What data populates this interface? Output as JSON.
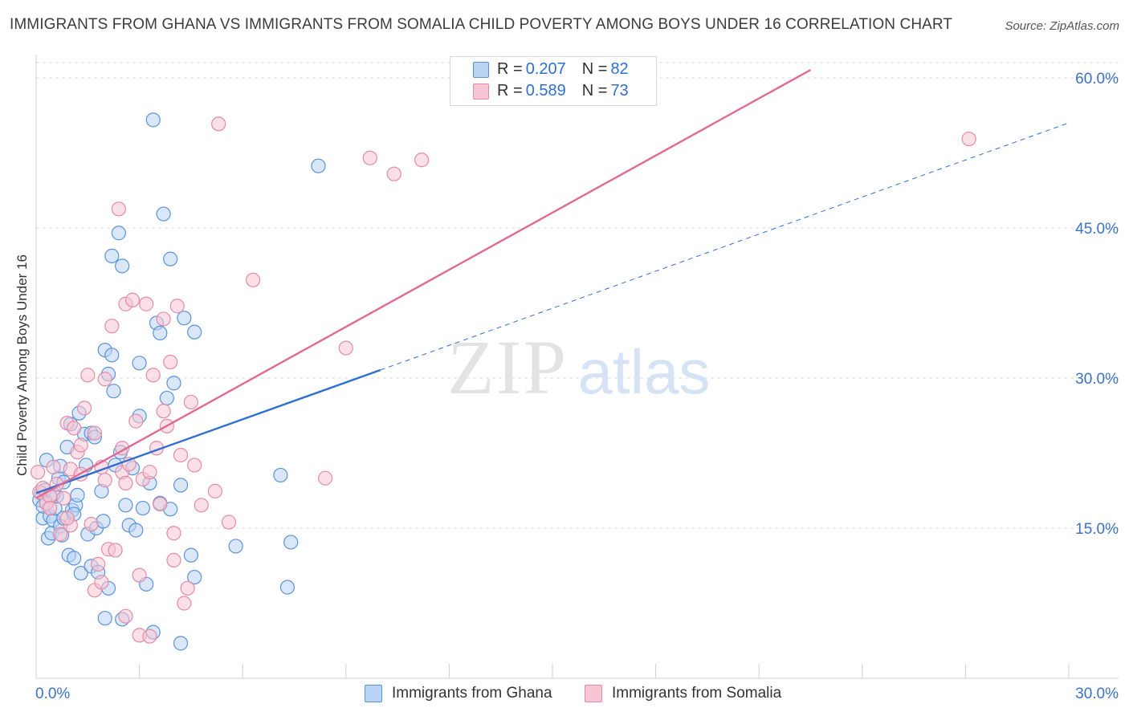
{
  "title": "IMMIGRANTS FROM GHANA VS IMMIGRANTS FROM SOMALIA CHILD POVERTY AMONG BOYS UNDER 16 CORRELATION CHART",
  "source": "Source: ZipAtlas.com",
  "watermark": {
    "zip": "ZIP",
    "atlas": "atlas"
  },
  "legend": {
    "ghana": {
      "r_label": "R = ",
      "r_value": "0.207",
      "n_label": "N = ",
      "n_value": "82"
    },
    "somalia": {
      "r_label": "R = ",
      "r_value": "0.589",
      "n_label": "N = ",
      "n_value": "73"
    }
  },
  "colors": {
    "ghana_fill": "#b9d3f3",
    "ghana_stroke": "#5b93d8",
    "ghana_line": "#2f6fcf",
    "somalia_fill": "#f7c6d4",
    "somalia_stroke": "#e58aa6",
    "somalia_line": "#e06a93",
    "tick": "#3b72c4",
    "grid": "#dcdcdc"
  },
  "chart_data": {
    "type": "scatter",
    "xlabel": "",
    "ylabel": "Child Poverty Among Boys Under 16",
    "xlim": [
      0,
      30
    ],
    "ylim": [
      0,
      60
    ],
    "x_tick_labels": [
      "0.0%",
      "30.0%"
    ],
    "y_ticks": [
      15,
      30,
      45,
      60
    ],
    "y_tick_labels": [
      "15.0%",
      "30.0%",
      "45.0%",
      "60.0%"
    ],
    "grid": true,
    "legend_position": "top-center",
    "series": [
      {
        "name": "Immigrants from Ghana",
        "points": [
          [
            0.1,
            17.8
          ],
          [
            0.15,
            18.5
          ],
          [
            0.2,
            16.0
          ],
          [
            0.2,
            17.2
          ],
          [
            0.25,
            18.8
          ],
          [
            0.3,
            21.8
          ],
          [
            0.35,
            14.0
          ],
          [
            0.4,
            16.2
          ],
          [
            0.45,
            14.5
          ],
          [
            0.5,
            15.8
          ],
          [
            0.55,
            17.0
          ],
          [
            0.6,
            18.2
          ],
          [
            0.65,
            20.0
          ],
          [
            0.7,
            21.2
          ],
          [
            0.7,
            15.2
          ],
          [
            0.75,
            14.3
          ],
          [
            0.8,
            16.0
          ],
          [
            0.9,
            23.1
          ],
          [
            0.95,
            12.3
          ],
          [
            1.0,
            25.4
          ],
          [
            1.05,
            16.8
          ],
          [
            1.1,
            12.0
          ],
          [
            1.15,
            17.3
          ],
          [
            1.2,
            18.3
          ],
          [
            1.25,
            26.5
          ],
          [
            1.3,
            10.5
          ],
          [
            1.4,
            24.4
          ],
          [
            1.45,
            21.3
          ],
          [
            1.5,
            14.4
          ],
          [
            1.6,
            24.5
          ],
          [
            1.6,
            11.2
          ],
          [
            1.7,
            24.1
          ],
          [
            1.75,
            15.0
          ],
          [
            1.8,
            10.6
          ],
          [
            1.9,
            18.7
          ],
          [
            1.95,
            15.7
          ],
          [
            2.0,
            32.8
          ],
          [
            2.1,
            9.0
          ],
          [
            2.1,
            30.4
          ],
          [
            2.2,
            32.3
          ],
          [
            2.2,
            42.2
          ],
          [
            2.25,
            28.7
          ],
          [
            2.3,
            21.3
          ],
          [
            2.4,
            44.5
          ],
          [
            2.45,
            22.6
          ],
          [
            2.5,
            41.2
          ],
          [
            2.6,
            17.3
          ],
          [
            2.7,
            15.3
          ],
          [
            2.8,
            21.0
          ],
          [
            2.9,
            14.8
          ],
          [
            3.0,
            31.5
          ],
          [
            3.0,
            26.2
          ],
          [
            3.1,
            17.0
          ],
          [
            3.2,
            9.4
          ],
          [
            3.3,
            19.5
          ],
          [
            3.4,
            55.8
          ],
          [
            3.5,
            35.5
          ],
          [
            3.6,
            17.5
          ],
          [
            3.6,
            34.5
          ],
          [
            3.7,
            46.4
          ],
          [
            3.8,
            28.0
          ],
          [
            3.9,
            16.9
          ],
          [
            3.9,
            41.9
          ],
          [
            4.0,
            29.5
          ],
          [
            4.2,
            19.3
          ],
          [
            4.3,
            36.0
          ],
          [
            4.5,
            12.3
          ],
          [
            4.6,
            34.6
          ],
          [
            4.6,
            10.1
          ],
          [
            5.8,
            13.2
          ],
          [
            7.1,
            20.3
          ],
          [
            7.3,
            9.1
          ],
          [
            7.4,
            13.6
          ],
          [
            8.2,
            51.2
          ],
          [
            0.3,
            17.5
          ],
          [
            0.5,
            18.4
          ],
          [
            0.8,
            19.6
          ],
          [
            1.1,
            16.4
          ],
          [
            2.0,
            6.0
          ],
          [
            2.5,
            5.9
          ],
          [
            3.4,
            4.6
          ],
          [
            4.2,
            3.5
          ]
        ]
      },
      {
        "name": "Immigrants from Somalia",
        "points": [
          [
            0.05,
            20.6
          ],
          [
            0.1,
            18.6
          ],
          [
            0.2,
            19.0
          ],
          [
            0.3,
            17.5
          ],
          [
            0.4,
            18.2
          ],
          [
            0.5,
            21.1
          ],
          [
            0.6,
            19.4
          ],
          [
            0.7,
            14.4
          ],
          [
            0.8,
            18.0
          ],
          [
            0.9,
            25.5
          ],
          [
            1.0,
            15.3
          ],
          [
            1.0,
            20.9
          ],
          [
            1.1,
            25.0
          ],
          [
            1.2,
            22.6
          ],
          [
            1.3,
            23.3
          ],
          [
            1.4,
            27.0
          ],
          [
            1.5,
            30.3
          ],
          [
            1.6,
            15.4
          ],
          [
            1.7,
            24.5
          ],
          [
            1.8,
            11.4
          ],
          [
            1.9,
            21.1
          ],
          [
            2.0,
            29.9
          ],
          [
            2.0,
            19.8
          ],
          [
            2.1,
            12.9
          ],
          [
            2.2,
            35.2
          ],
          [
            2.3,
            12.8
          ],
          [
            2.4,
            46.9
          ],
          [
            2.5,
            23.0
          ],
          [
            2.5,
            20.6
          ],
          [
            2.6,
            19.5
          ],
          [
            2.6,
            37.4
          ],
          [
            2.7,
            21.4
          ],
          [
            2.8,
            37.8
          ],
          [
            2.9,
            25.7
          ],
          [
            3.0,
            10.3
          ],
          [
            3.0,
            4.3
          ],
          [
            3.1,
            19.9
          ],
          [
            3.2,
            37.4
          ],
          [
            3.3,
            20.6
          ],
          [
            3.4,
            30.3
          ],
          [
            3.5,
            23.0
          ],
          [
            3.6,
            17.4
          ],
          [
            3.7,
            35.9
          ],
          [
            3.7,
            26.7
          ],
          [
            3.8,
            25.2
          ],
          [
            3.9,
            31.6
          ],
          [
            4.0,
            14.5
          ],
          [
            4.0,
            11.8
          ],
          [
            4.1,
            37.2
          ],
          [
            4.2,
            22.3
          ],
          [
            4.3,
            7.5
          ],
          [
            4.4,
            9.0
          ],
          [
            4.5,
            27.6
          ],
          [
            4.6,
            21.3
          ],
          [
            4.8,
            17.3
          ],
          [
            5.2,
            18.7
          ],
          [
            5.3,
            55.4
          ],
          [
            5.6,
            15.6
          ],
          [
            6.3,
            39.8
          ],
          [
            8.4,
            20.0
          ],
          [
            9.0,
            33.0
          ],
          [
            9.7,
            52.0
          ],
          [
            10.4,
            50.4
          ],
          [
            11.2,
            51.8
          ],
          [
            14.0,
            58.0
          ],
          [
            27.1,
            53.9
          ],
          [
            0.4,
            17.0
          ],
          [
            0.9,
            16.0
          ],
          [
            1.3,
            20.4
          ],
          [
            1.7,
            8.8
          ],
          [
            1.9,
            9.6
          ],
          [
            2.6,
            6.2
          ],
          [
            3.3,
            4.2
          ]
        ]
      }
    ],
    "trendlines": [
      {
        "series": "Immigrants from Ghana",
        "solid": [
          [
            0,
            18.5
          ],
          [
            10,
            30.8
          ]
        ],
        "dashed": [
          [
            10,
            30.8
          ],
          [
            30,
            55.5
          ]
        ]
      },
      {
        "series": "Immigrants from Somalia",
        "solid": [
          [
            0,
            18.0
          ],
          [
            22.5,
            60.8
          ]
        ]
      }
    ]
  }
}
